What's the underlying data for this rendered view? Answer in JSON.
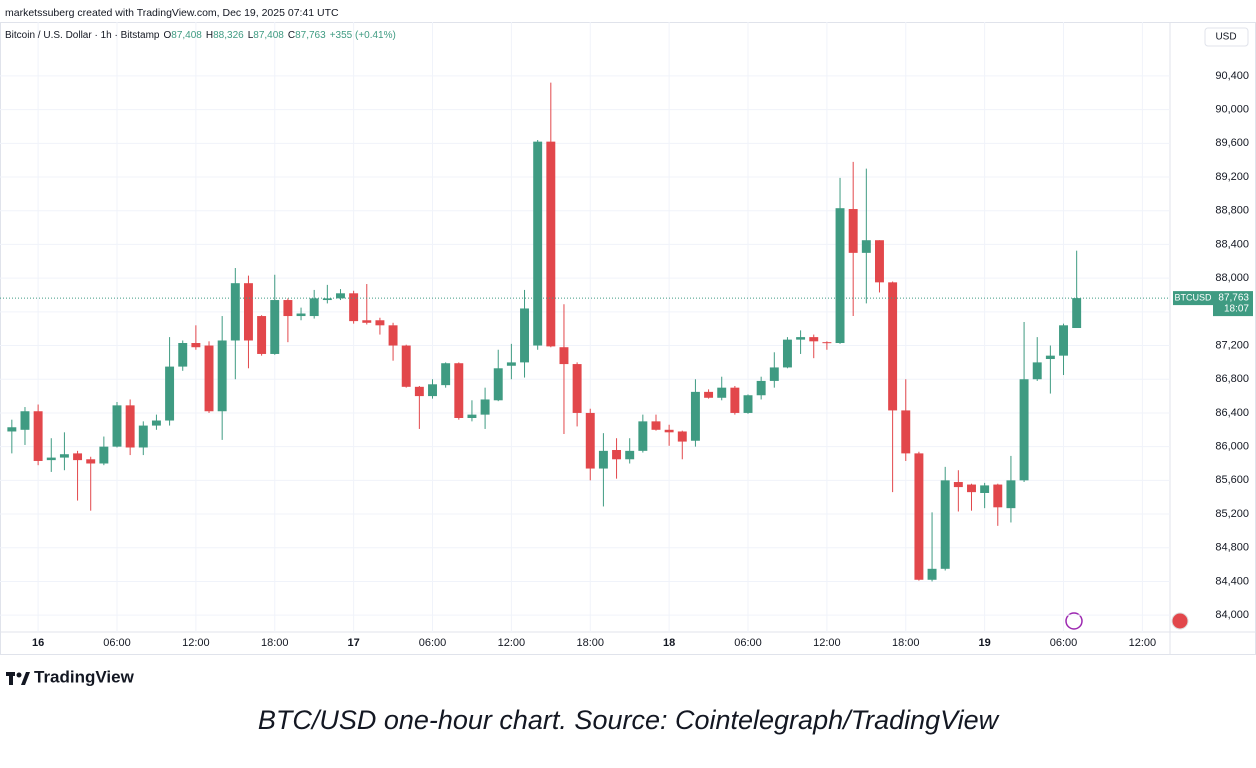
{
  "attribution": "marketssuberg created with TradingView.com, Dec 19, 2025 07:41 UTC",
  "chart_data": {
    "type": "candlestick",
    "symbol_title": "Bitcoin / U.S. Dollar · 1h · Bitstamp",
    "ohlc_legend": [
      {
        "label": "O",
        "text": "87,408"
      },
      {
        "label": "H",
        "text": "88,326"
      },
      {
        "label": "L",
        "text": "87,408"
      },
      {
        "label": "C",
        "text": "87,763"
      }
    ],
    "change": "+355 (+0.41%)",
    "currency": "USD",
    "last_price": {
      "symbol": "BTCUSD",
      "value": 87763,
      "label": "87,763",
      "countdown": "18:07"
    },
    "up_color": "#3f9b82",
    "down_color": "#e2474b",
    "grid": true,
    "x": [
      -2,
      -1,
      0,
      1,
      2,
      3,
      4,
      5,
      6,
      7,
      8,
      9,
      10,
      11,
      12,
      13,
      14,
      15,
      16,
      17,
      18,
      19,
      20,
      21,
      22,
      23,
      24,
      25,
      26,
      27,
      28,
      29,
      30,
      31,
      32,
      33,
      34,
      35,
      36,
      37,
      38,
      39,
      40,
      41,
      42,
      43,
      44,
      45,
      46,
      47,
      48,
      49,
      50,
      51,
      52,
      53,
      54,
      55,
      56,
      57,
      58,
      59,
      60,
      61,
      62,
      63,
      64,
      65,
      66,
      67,
      68,
      69,
      70,
      71,
      72,
      73,
      74,
      75,
      76,
      77,
      78,
      79
    ],
    "open": [
      86180,
      86200,
      86420,
      85840,
      85870,
      85920,
      85850,
      85800,
      86000,
      86490,
      85990,
      86250,
      86310,
      86950,
      87230,
      87200,
      86420,
      87260,
      87940,
      87550,
      87100,
      87740,
      87550,
      87550,
      87740,
      87760,
      87820,
      87500,
      87500,
      87440,
      87200,
      86710,
      86600,
      86730,
      86990,
      86340,
      86380,
      86550,
      86960,
      87000,
      87200,
      89620,
      87180,
      86980,
      86400,
      85740,
      85960,
      85850,
      85950,
      86300,
      86200,
      86180,
      86070,
      86650,
      86580,
      86700,
      86400,
      86610,
      86780,
      86940,
      87270,
      87300,
      87240,
      87230,
      88820,
      88300,
      88450,
      87950,
      86430,
      85920,
      84420,
      84550,
      85580,
      85550,
      85450,
      85550,
      85270,
      85600,
      86800,
      87040,
      87080,
      87408
    ],
    "high": [
      86320,
      86470,
      86500,
      86100,
      86170,
      85950,
      85880,
      86120,
      86530,
      86560,
      86300,
      86380,
      87300,
      87260,
      87440,
      87250,
      87550,
      88120,
      88030,
      87560,
      88040,
      87760,
      87650,
      87860,
      87920,
      87870,
      87850,
      87930,
      87530,
      87470,
      87210,
      86720,
      86800,
      87000,
      87000,
      86550,
      86700,
      87150,
      87220,
      87860,
      89640,
      90320,
      87690,
      87000,
      86450,
      86160,
      86100,
      86100,
      86380,
      86380,
      86260,
      86190,
      86800,
      86680,
      86830,
      86720,
      86620,
      86830,
      87120,
      87300,
      87380,
      87330,
      87250,
      89190,
      89380,
      89300,
      88450,
      87960,
      86800,
      85940,
      85220,
      85760,
      85720,
      85560,
      85570,
      85560,
      85890,
      87480,
      87300,
      87200,
      87460,
      88326
    ],
    "low": [
      85920,
      86020,
      85780,
      85700,
      85720,
      85360,
      85240,
      85780,
      85990,
      85900,
      85900,
      86200,
      86250,
      86900,
      87150,
      86400,
      86080,
      86800,
      86930,
      87080,
      87090,
      87240,
      87500,
      87520,
      87700,
      87740,
      87460,
      87450,
      87330,
      87020,
      86700,
      86210,
      86570,
      86700,
      86320,
      86300,
      86210,
      86540,
      86800,
      86820,
      87150,
      87180,
      86150,
      86240,
      85600,
      85290,
      85620,
      85800,
      85930,
      86190,
      86010,
      85850,
      86000,
      86570,
      86550,
      86380,
      86390,
      86560,
      86700,
      86930,
      87100,
      87050,
      87150,
      87220,
      87550,
      87700,
      87830,
      85460,
      85830,
      84410,
      84400,
      84530,
      85230,
      85240,
      85270,
      85060,
      85100,
      85580,
      86780,
      86630,
      86850,
      87408
    ],
    "close": [
      86230,
      86420,
      85830,
      85870,
      85910,
      85840,
      85800,
      86000,
      86490,
      85990,
      86250,
      86310,
      86950,
      87230,
      87180,
      86420,
      87260,
      87940,
      87260,
      87100,
      87740,
      87550,
      87580,
      87760,
      87760,
      87820,
      87490,
      87470,
      87440,
      87200,
      86710,
      86600,
      86740,
      86990,
      86340,
      86380,
      86560,
      86930,
      87000,
      87640,
      89620,
      87190,
      86980,
      86400,
      85740,
      85950,
      85850,
      85950,
      86300,
      86200,
      86170,
      86060,
      86650,
      86580,
      86700,
      86400,
      86610,
      86780,
      86940,
      87270,
      87300,
      87250,
      87230,
      88830,
      88300,
      88450,
      87950,
      86430,
      85920,
      84420,
      84550,
      85600,
      85520,
      85460,
      85540,
      85280,
      85600,
      86800,
      87000,
      87080,
      87440,
      87763
    ],
    "xlim": [
      -2.9,
      86.1
    ],
    "xticks": [
      {
        "value": 0,
        "label": "16"
      },
      {
        "value": 6,
        "label": "06:00"
      },
      {
        "value": 12,
        "label": "12:00"
      },
      {
        "value": 18,
        "label": "18:00"
      },
      {
        "value": 24,
        "label": "17"
      },
      {
        "value": 30,
        "label": "06:00"
      },
      {
        "value": 36,
        "label": "12:00"
      },
      {
        "value": 42,
        "label": "18:00"
      },
      {
        "value": 48,
        "label": "18"
      },
      {
        "value": 54,
        "label": "06:00"
      },
      {
        "value": 60,
        "label": "12:00"
      },
      {
        "value": 66,
        "label": "18:00"
      },
      {
        "value": 72,
        "label": "19"
      },
      {
        "value": 78,
        "label": "06:00"
      },
      {
        "value": 84,
        "label": "12:00"
      }
    ],
    "ylim": [
      83800,
      91040
    ],
    "yticks": [
      {
        "value": 84000,
        "label": "84,000"
      },
      {
        "value": 84400,
        "label": "84,400"
      },
      {
        "value": 84800,
        "label": "84,800"
      },
      {
        "value": 85200,
        "label": "85,200"
      },
      {
        "value": 85600,
        "label": "85,600"
      },
      {
        "value": 86000,
        "label": "86,000"
      },
      {
        "value": 86400,
        "label": "86,400"
      },
      {
        "value": 86800,
        "label": "86,800"
      },
      {
        "value": 87200,
        "label": "87,200"
      },
      {
        "value": 87600,
        "label": "87,600"
      },
      {
        "value": 88000,
        "label": "88,000"
      },
      {
        "value": 88400,
        "label": "88,400"
      },
      {
        "value": 88800,
        "label": "88,800"
      },
      {
        "value": 89200,
        "label": "89,200"
      },
      {
        "value": 89600,
        "label": "89,600"
      },
      {
        "value": 90000,
        "label": "90,000"
      },
      {
        "value": 90400,
        "label": "90,400"
      }
    ]
  },
  "logo": "TradingView",
  "caption": "BTC/USD one-hour chart. Source: Cointelegraph/TradingView"
}
